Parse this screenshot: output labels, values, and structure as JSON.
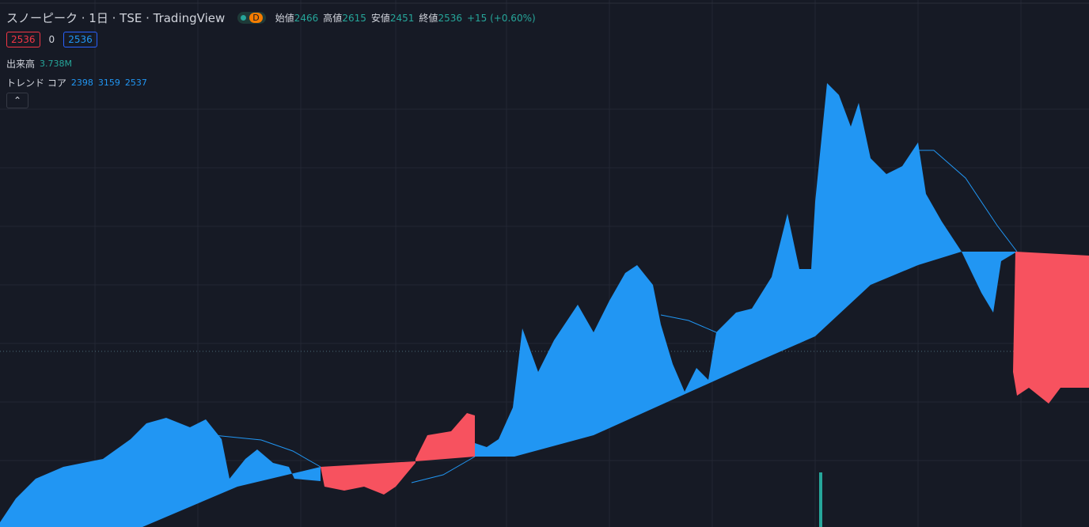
{
  "header": {
    "symbol": "スノーピーク · 1日 · TSE · TradingView",
    "interval_badge": "D",
    "ohlc": [
      {
        "label": "始値",
        "value": "2466"
      },
      {
        "label": "高値",
        "value": "2615"
      },
      {
        "label": "安値",
        "value": "2451"
      },
      {
        "label": "終値",
        "value": "2536"
      }
    ],
    "change": "+15 (+0.60%)"
  },
  "order": {
    "sell": "2536",
    "spread": "0",
    "buy": "2536"
  },
  "indicators": [
    {
      "name": "出来高",
      "values": [
        "3.738M"
      ]
    },
    {
      "name": "トレンド コア",
      "values": [
        "2398",
        "3159",
        "2537"
      ]
    }
  ]
}
